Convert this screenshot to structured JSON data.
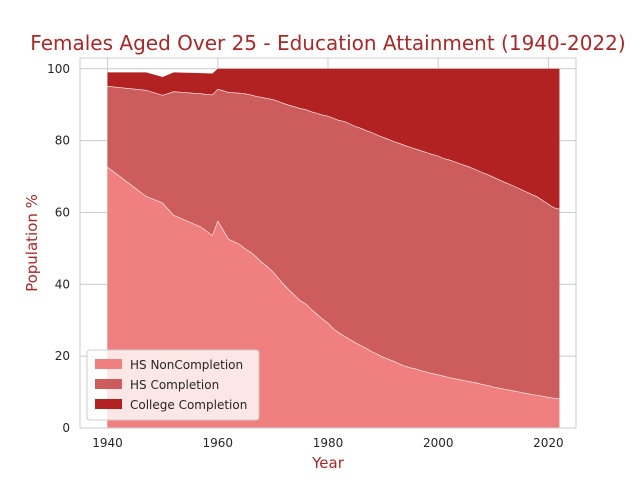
{
  "chart_data": {
    "type": "area",
    "stacked": true,
    "title": "Females Aged Over 25 - Education Attainment (1940-2022)",
    "xlabel": "Year",
    "ylabel": "Population %",
    "xlim": [
      1935,
      2025
    ],
    "ylim": [
      0,
      103
    ],
    "xticks": [
      1940,
      1960,
      1980,
      2000,
      2020
    ],
    "yticks": [
      0,
      20,
      40,
      60,
      80,
      100
    ],
    "grid": true,
    "legend_position": "lower-left",
    "x": [
      1940,
      1947,
      1950,
      1952,
      1957,
      1959,
      1960,
      1962,
      1964,
      1965,
      1966,
      1967,
      1968,
      1969,
      1970,
      1971,
      1972,
      1973,
      1974,
      1975,
      1976,
      1977,
      1978,
      1979,
      1980,
      1981,
      1982,
      1983,
      1984,
      1985,
      1986,
      1987,
      1988,
      1989,
      1990,
      1991,
      1992,
      1993,
      1994,
      1995,
      1996,
      1997,
      1998,
      1999,
      2000,
      2001,
      2002,
      2003,
      2004,
      2005,
      2006,
      2007,
      2008,
      2009,
      2010,
      2011,
      2012,
      2013,
      2014,
      2015,
      2016,
      2017,
      2018,
      2019,
      2020,
      2021,
      2022
    ],
    "series": [
      {
        "name": "HS NonCompletion",
        "color": "#f08080",
        "values": [
          72.7,
          64.6,
          62.7,
          59.3,
          56.0,
          53.7,
          57.8,
          52.6,
          51.2,
          49.9,
          49.0,
          47.7,
          46.2,
          45.0,
          43.6,
          41.8,
          40.0,
          38.4,
          37.0,
          35.5,
          34.6,
          33.1,
          31.8,
          30.4,
          29.3,
          27.7,
          26.6,
          25.6,
          24.7,
          23.8,
          23.0,
          22.2,
          21.3,
          20.6,
          19.8,
          19.2,
          18.6,
          17.9,
          17.3,
          16.8,
          16.5,
          16.0,
          15.6,
          15.2,
          14.9,
          14.5,
          14.1,
          13.8,
          13.5,
          13.2,
          12.9,
          12.6,
          12.2,
          11.9,
          11.5,
          11.2,
          10.9,
          10.6,
          10.3,
          10.0,
          9.7,
          9.4,
          9.2,
          8.9,
          8.6,
          8.4,
          8.2
        ]
      },
      {
        "name": "HS Completion",
        "color": "#cd5c5c",
        "values": [
          22.5,
          29.5,
          30.0,
          34.4,
          37.1,
          39.1,
          36.6,
          40.9,
          42.1,
          43.2,
          43.8,
          44.7,
          45.9,
          46.8,
          47.9,
          49.2,
          50.4,
          51.5,
          52.5,
          53.5,
          54.1,
          55.0,
          55.9,
          56.8,
          57.6,
          58.6,
          59.1,
          59.8,
          60.0,
          60.2,
          60.5,
          60.6,
          61.0,
          61.0,
          61.2,
          61.2,
          61.2,
          61.4,
          61.4,
          61.4,
          61.2,
          61.2,
          61.1,
          61.0,
          60.9,
          60.6,
          60.6,
          60.4,
          60.1,
          59.9,
          59.6,
          59.3,
          59.0,
          58.7,
          58.4,
          58.0,
          57.6,
          57.3,
          56.9,
          56.5,
          56.1,
          55.7,
          55.2,
          54.5,
          53.8,
          53.0,
          52.8
        ]
      },
      {
        "name": "College Completion",
        "color": "#b22222",
        "values": [
          3.8,
          4.9,
          5.0,
          5.3,
          5.7,
          5.9,
          5.6,
          6.5,
          6.7,
          6.9,
          7.2,
          7.6,
          7.9,
          8.2,
          8.5,
          9.0,
          9.6,
          10.1,
          10.5,
          11.0,
          11.3,
          11.9,
          12.3,
          12.8,
          13.1,
          13.7,
          14.3,
          14.6,
          15.3,
          16.0,
          16.5,
          17.2,
          17.7,
          18.4,
          19.0,
          19.6,
          20.2,
          20.7,
          21.3,
          21.8,
          22.3,
          22.8,
          23.3,
          23.8,
          24.2,
          24.9,
          25.3,
          25.8,
          26.4,
          26.9,
          27.5,
          28.1,
          28.8,
          29.4,
          30.1,
          30.8,
          31.5,
          32.1,
          32.8,
          33.5,
          34.2,
          34.9,
          35.6,
          36.6,
          37.6,
          38.6,
          39.0
        ]
      }
    ]
  }
}
